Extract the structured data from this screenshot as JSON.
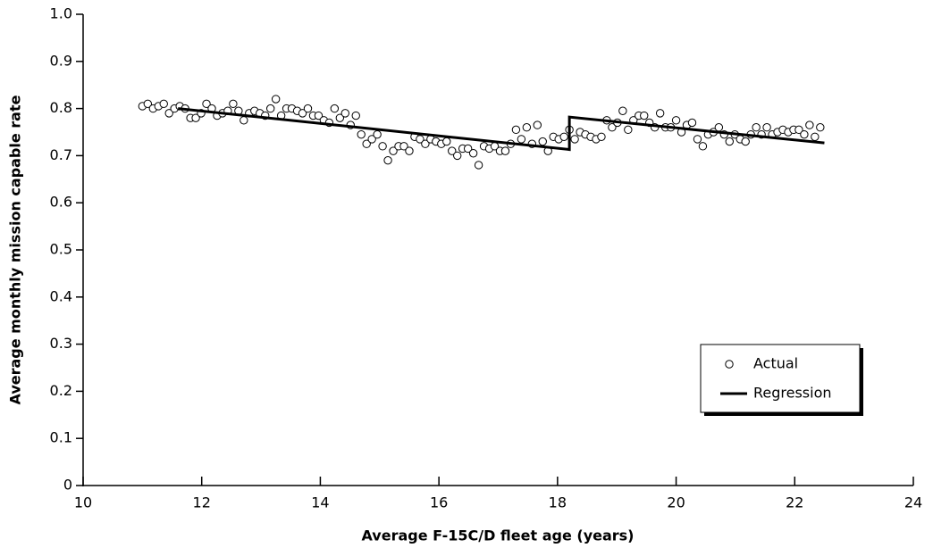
{
  "chart_data": {
    "type": "scatter",
    "x_label": "Average F-15C/D fleet age (years)",
    "y_label": "Average monthly mission capable rate",
    "xlim": [
      10,
      24
    ],
    "xticks": [
      10,
      12,
      14,
      16,
      18,
      20,
      22,
      24
    ],
    "ylim": [
      0,
      1
    ],
    "yticks": [
      0,
      0.1,
      0.2,
      0.3,
      0.4,
      0.5,
      0.6,
      0.7,
      0.8,
      0.9,
      {
        "value": 1,
        "label": "1.0"
      }
    ],
    "legend": "lower right",
    "series": [
      {
        "name": "Actual",
        "type": "scatter",
        "color": "#000000",
        "x": [
          11.0,
          11.09,
          11.18,
          11.27,
          11.36,
          11.45,
          11.54,
          11.63,
          11.72,
          11.81,
          11.9,
          11.99,
          12.08,
          12.17,
          12.26,
          12.35,
          12.44,
          12.53,
          12.62,
          12.71,
          12.8,
          12.89,
          12.98,
          13.07,
          13.16,
          13.25,
          13.34,
          13.43,
          13.52,
          13.61,
          13.7,
          13.79,
          13.88,
          13.97,
          14.06,
          14.15,
          14.24,
          14.33,
          14.42,
          14.51,
          14.6,
          14.69,
          14.78,
          14.87,
          14.96,
          15.05,
          15.14,
          15.23,
          15.32,
          15.41,
          15.5,
          15.59,
          15.68,
          15.77,
          15.86,
          15.95,
          16.04,
          16.13,
          16.22,
          16.31,
          16.4,
          16.49,
          16.58,
          16.67,
          16.76,
          16.85,
          16.94,
          17.03,
          17.12,
          17.21,
          17.3,
          17.39,
          17.48,
          17.57,
          17.66,
          17.75,
          17.84,
          17.93,
          18.02,
          18.11,
          18.2,
          18.29,
          18.38,
          18.47,
          18.56,
          18.65,
          18.74,
          18.83,
          18.92,
          19.01,
          19.1,
          19.19,
          19.28,
          19.37,
          19.46,
          19.55,
          19.64,
          19.73,
          19.82,
          19.91,
          20.0,
          20.09,
          20.18,
          20.27,
          20.36,
          20.45,
          20.54,
          20.63,
          20.72,
          20.81,
          20.9,
          20.99,
          21.08,
          21.17,
          21.26,
          21.35,
          21.44,
          21.53,
          21.62,
          21.71,
          21.8,
          21.89,
          21.98,
          22.07,
          22.16,
          22.25,
          22.34,
          22.43
        ],
        "values": [
          0.805,
          0.81,
          0.8,
          0.805,
          0.81,
          0.79,
          0.8,
          0.805,
          0.8,
          0.78,
          0.78,
          0.79,
          0.81,
          0.8,
          0.785,
          0.79,
          0.795,
          0.81,
          0.795,
          0.775,
          0.79,
          0.795,
          0.79,
          0.785,
          0.8,
          0.82,
          0.785,
          0.8,
          0.8,
          0.795,
          0.79,
          0.8,
          0.785,
          0.785,
          0.775,
          0.77,
          0.8,
          0.78,
          0.79,
          0.765,
          0.785,
          0.745,
          0.725,
          0.735,
          0.745,
          0.72,
          0.69,
          0.71,
          0.72,
          0.72,
          0.71,
          0.74,
          0.735,
          0.725,
          0.735,
          0.73,
          0.725,
          0.73,
          0.71,
          0.7,
          0.715,
          0.715,
          0.705,
          0.68,
          0.72,
          0.715,
          0.72,
          0.71,
          0.71,
          0.725,
          0.755,
          0.735,
          0.76,
          0.725,
          0.765,
          0.73,
          0.71,
          0.74,
          0.735,
          0.74,
          0.755,
          0.735,
          0.75,
          0.745,
          0.74,
          0.735,
          0.74,
          0.775,
          0.76,
          0.77,
          0.795,
          0.755,
          0.775,
          0.785,
          0.785,
          0.77,
          0.76,
          0.79,
          0.76,
          0.76,
          0.775,
          0.75,
          0.765,
          0.77,
          0.735,
          0.72,
          0.745,
          0.75,
          0.76,
          0.745,
          0.73,
          0.745,
          0.735,
          0.73,
          0.745,
          0.76,
          0.745,
          0.76,
          0.745,
          0.75,
          0.755,
          0.75,
          0.755,
          0.755,
          0.745,
          0.765,
          0.74,
          0.76
        ]
      },
      {
        "name": "Regression",
        "type": "line",
        "color": "#000000",
        "x": [
          11.6,
          18.2,
          18.2,
          22.5
        ],
        "values": [
          0.8,
          0.713,
          0.782,
          0.727
        ]
      }
    ]
  }
}
